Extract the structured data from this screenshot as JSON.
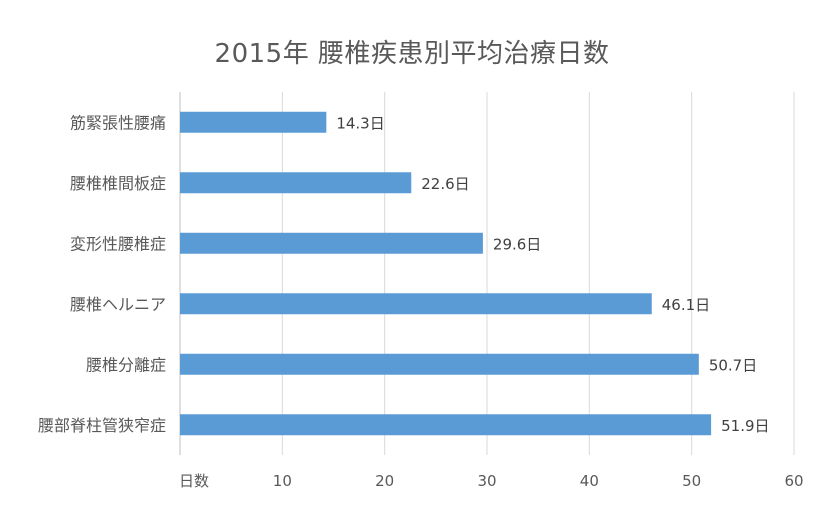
{
  "chart_data": {
    "type": "bar",
    "orientation": "horizontal",
    "title": "2015年 腰椎疾患別平均治療日数",
    "xlabel": "日数",
    "ylabel": "",
    "categories": [
      "筋緊張性腰痛",
      "腰椎椎間板症",
      "変形性腰椎症",
      "腰椎ヘルニア",
      "腰椎分離症",
      "腰部脊柱管狭窄症"
    ],
    "values": [
      14.3,
      22.6,
      29.6,
      46.1,
      50.7,
      51.9
    ],
    "data_labels": [
      "14.3日",
      "22.6日",
      "29.6日",
      "46.1日",
      "50.7日",
      "51.9日"
    ],
    "xlim": [
      0,
      60
    ],
    "xticks": [
      10,
      20,
      30,
      40,
      50,
      60
    ],
    "grid": "vertical",
    "legend": "none",
    "bar_color": "#5b9bd5"
  }
}
